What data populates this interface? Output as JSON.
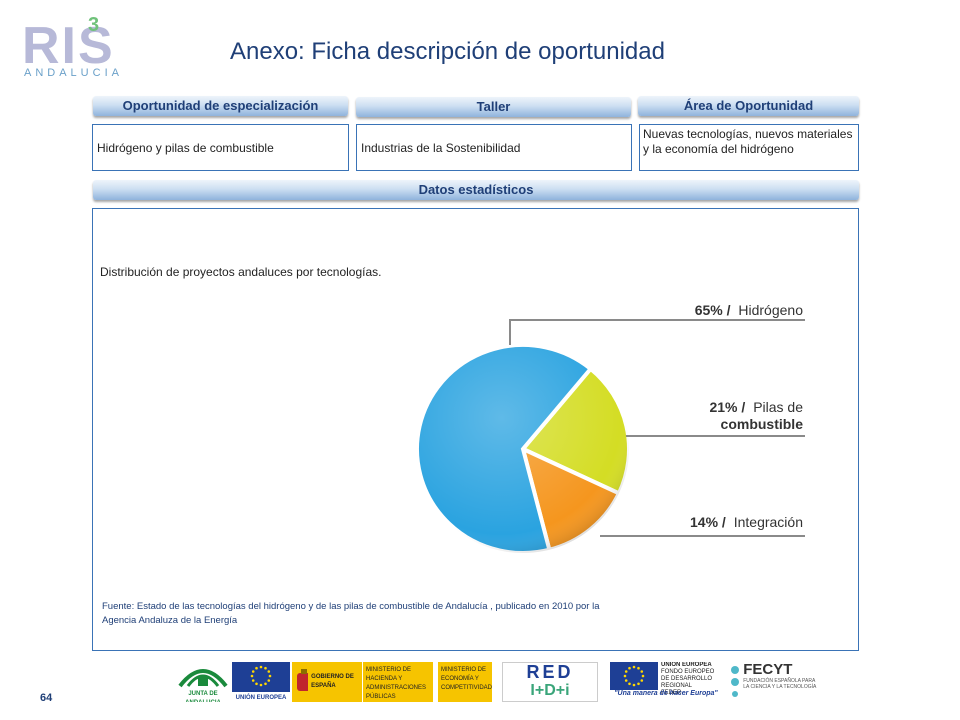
{
  "logo": {
    "main": "RIS",
    "superscript": "3",
    "sub": "ANDALUCIA"
  },
  "title": "Anexo: Ficha descripción de oportunidad",
  "headers": {
    "opportunity": "Oportunidad  de especialización",
    "workshop": "Taller",
    "area": "Área de Oportunidad",
    "stats": "Datos  estadísticos"
  },
  "values": {
    "opportunity": "Hidrógeno y pilas de combustible",
    "workshop": "Industrias de la Sostenibilidad",
    "area": "Nuevas tecnologías, nuevos materiales y la economía del hidrógeno"
  },
  "chart_caption": "Distribución de proyectos andaluces por tecnologías.",
  "source": "Fuente: Estado de las tecnologías del hidrógeno y de las pilas de combustible de Andalucía , publicado en 2010 por la Agencia Andaluza de la Energía",
  "chart_data": {
    "type": "pie",
    "slices": [
      {
        "pct_label": "65% /",
        "label": "Hidrógeno",
        "value": 65,
        "color": "#2aa3e0"
      },
      {
        "pct_label": "21% /",
        "label_lines": [
          "Pilas de",
          "combustible"
        ],
        "value": 21,
        "color": "#d4dd24"
      },
      {
        "pct_label": "14% /",
        "label": "Integración",
        "value": 14,
        "color": "#f5961e"
      }
    ]
  },
  "page_number": "64",
  "footer": {
    "junta": "JUNTA DE ANDALUCIA",
    "ue": "UNIÓN EUROPEA",
    "gobierno": "GOBIERNO DE ESPAÑA",
    "min_hacienda": "MINISTERIO DE HACIENDA Y ADMINISTRACIONES PÚBLICAS",
    "min_economia": "MINISTERIO DE ECONOMÍA Y COMPETITIVIDAD",
    "red": "RED",
    "idi": "I+D+i",
    "ue2_title": "UNIÓN EUROPEA",
    "ue2_fund": "FONDO EUROPEO DE DESARROLLO REGIONAL",
    "ue2_feder": "FEDER",
    "ue2_motto": "\"Una manera de hacer Europa\"",
    "fecyt": "FECYT",
    "fecyt_sub": "FUNDACIÓN ESPAÑOLA PARA LA CIENCIA Y LA TECNOLOGÍA"
  }
}
